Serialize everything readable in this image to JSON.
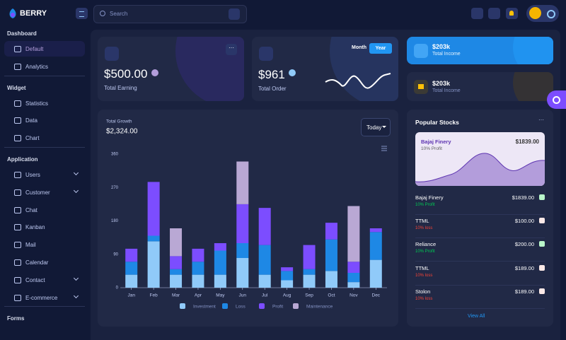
{
  "header": {
    "logo": "BERRY",
    "search_placeholder": "Search"
  },
  "sidebar": {
    "sections": [
      {
        "title": "Dashboard",
        "items": [
          {
            "label": "Default"
          },
          {
            "label": "Analytics"
          }
        ]
      },
      {
        "title": "Widget",
        "items": [
          {
            "label": "Statistics"
          },
          {
            "label": "Data"
          },
          {
            "label": "Chart"
          }
        ]
      },
      {
        "title": "Application",
        "items": [
          {
            "label": "Users",
            "expandable": true
          },
          {
            "label": "Customer",
            "expandable": true
          },
          {
            "label": "Chat"
          },
          {
            "label": "Kanban"
          },
          {
            "label": "Mail"
          },
          {
            "label": "Calendar"
          },
          {
            "label": "Contact",
            "expandable": true
          },
          {
            "label": "E-commerce",
            "expandable": true
          }
        ]
      },
      {
        "title": "Forms",
        "items": []
      }
    ]
  },
  "earning": {
    "value": "$500.00",
    "label": "Total Earning"
  },
  "order": {
    "value": "$961",
    "label": "Total Order",
    "tabs": [
      "Month",
      "Year"
    ]
  },
  "income": [
    {
      "value": "$203k",
      "label": "Total Income"
    },
    {
      "value": "$203k",
      "label": "Total Income"
    }
  ],
  "chart_data": {
    "type": "stacked-bar",
    "subtitle": "Total Growth",
    "title": "$2,324.00",
    "period": "Today",
    "categories": [
      "Jan",
      "Feb",
      "Mar",
      "Apr",
      "May",
      "Jun",
      "Jul",
      "Aug",
      "Sep",
      "Oct",
      "Nov",
      "Dec"
    ],
    "series": [
      {
        "name": "Investment",
        "color": "#90caf9",
        "values": [
          35,
          125,
          35,
          35,
          35,
          80,
          35,
          20,
          35,
          45,
          15,
          75
        ]
      },
      {
        "name": "Loss",
        "color": "#1e88e5",
        "values": [
          35,
          15,
          15,
          35,
          65,
          40,
          80,
          25,
          15,
          85,
          25,
          75
        ]
      },
      {
        "name": "Profit",
        "color": "#7c4dff",
        "values": [
          35,
          145,
          35,
          35,
          20,
          105,
          100,
          10,
          65,
          45,
          30,
          10
        ]
      },
      {
        "name": "Maintenance",
        "color": "#b9a8d4",
        "values": [
          0,
          0,
          75,
          0,
          0,
          115,
          0,
          0,
          0,
          0,
          150,
          0
        ]
      }
    ],
    "ylim": [
      0,
      360
    ],
    "yticks": [
      0,
      90,
      180,
      270,
      360
    ],
    "grid": false
  },
  "stocks": {
    "title": "Popular Stocks",
    "featured": {
      "name": "Bajaj Finery",
      "note": "10% Profit",
      "price": "$1839.00"
    },
    "rows": [
      {
        "name": "Bajaj Finery",
        "price": "$1839.00",
        "note": "10% Profit",
        "up": true
      },
      {
        "name": "TTML",
        "price": "$100.00",
        "note": "10% loss",
        "up": false
      },
      {
        "name": "Reliance",
        "price": "$200.00",
        "note": "10% Profit",
        "up": true
      },
      {
        "name": "TTML",
        "price": "$189.00",
        "note": "10% loss",
        "up": false
      },
      {
        "name": "Stolon",
        "price": "$189.00",
        "note": "10% loss",
        "up": false
      }
    ],
    "view_all": "View All"
  }
}
